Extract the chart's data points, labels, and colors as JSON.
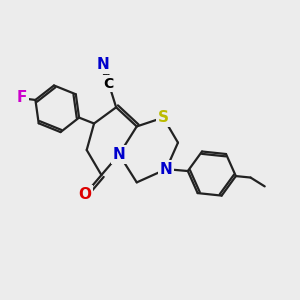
{
  "bg_color": "#ececec",
  "atom_colors": {
    "C": "#000000",
    "N": "#0000cc",
    "O": "#dd0000",
    "S": "#bbbb00",
    "F": "#cc00cc"
  },
  "bond_color": "#222222",
  "bond_width": 1.6
}
